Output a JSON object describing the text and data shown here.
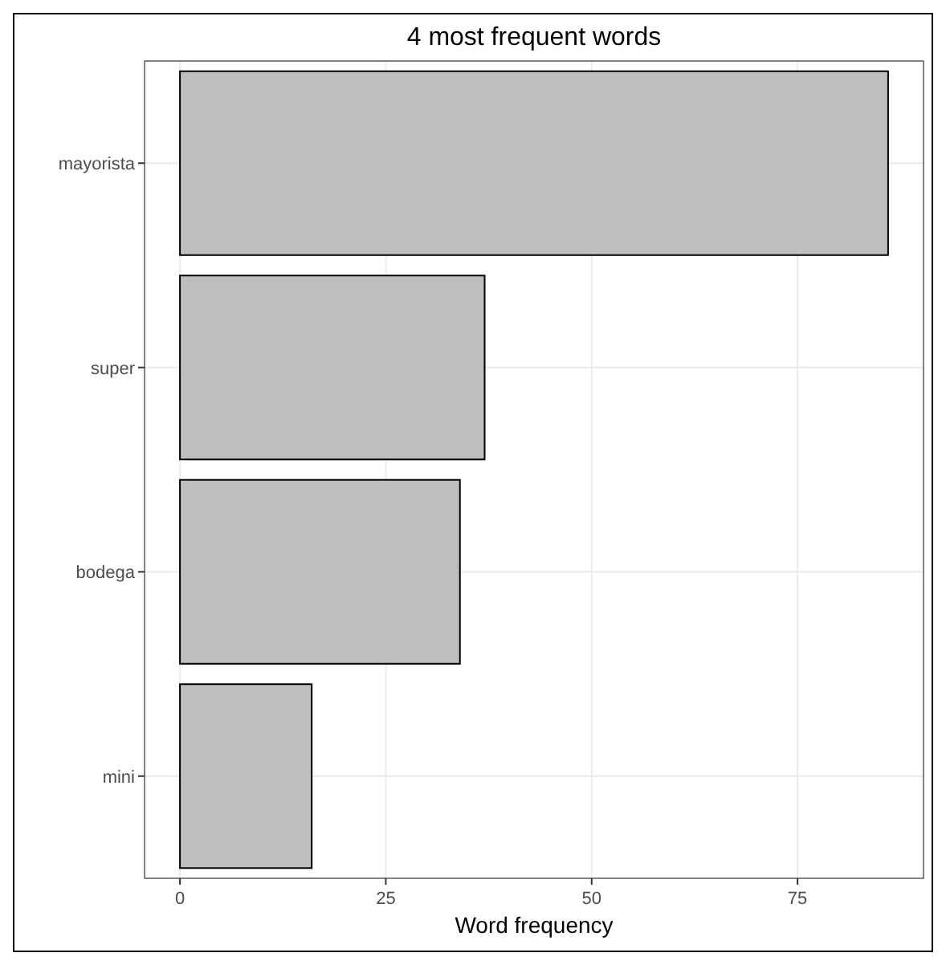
{
  "chart_data": {
    "type": "bar",
    "orientation": "horizontal",
    "title": "4 most frequent words",
    "xlabel": "Word frequency",
    "categories": [
      "mayorista",
      "super",
      "bodega",
      "mini"
    ],
    "values": [
      86,
      37,
      34,
      16
    ],
    "color": "#bebebe",
    "xlim": [
      -4.3,
      90.3
    ],
    "xticks": [
      0,
      25,
      50,
      75
    ],
    "grid": true
  }
}
